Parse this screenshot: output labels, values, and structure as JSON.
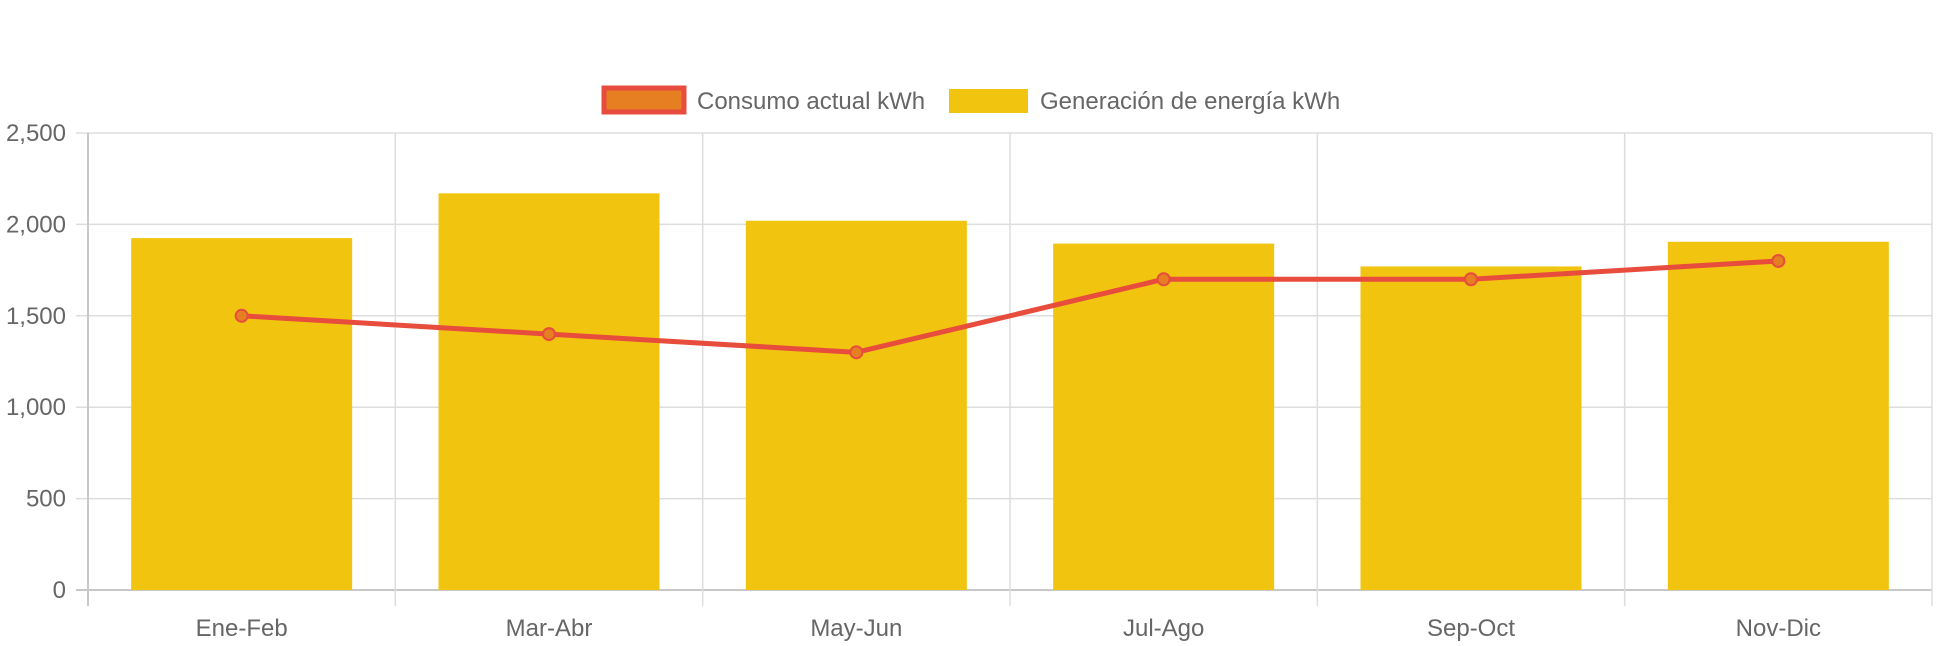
{
  "chart_data": {
    "type": "bar",
    "categories": [
      "Ene-Feb",
      "Mar-Abr",
      "May-Jun",
      "Jul-Ago",
      "Sep-Oct",
      "Nov-Dic"
    ],
    "series": [
      {
        "name": "Consumo actual kWh",
        "type": "line",
        "values": [
          1500,
          1400,
          1300,
          1700,
          1700,
          1800
        ],
        "color": "#e74c3c",
        "point_fill": "#e67e22"
      },
      {
        "name": "Generación de energía kWh",
        "type": "bar",
        "values": [
          1925,
          2170,
          2020,
          1895,
          1770,
          1905
        ],
        "color": "#f1c40f"
      }
    ],
    "ylim": [
      0,
      2500
    ],
    "yticks": [
      0,
      500,
      1000,
      1500,
      2000,
      2500
    ],
    "ytick_labels": [
      "0",
      "500",
      "1,000",
      "1,500",
      "2,000",
      "2,500"
    ],
    "grid": true,
    "legend_position": "top",
    "title": "",
    "xlabel": "",
    "ylabel": ""
  }
}
